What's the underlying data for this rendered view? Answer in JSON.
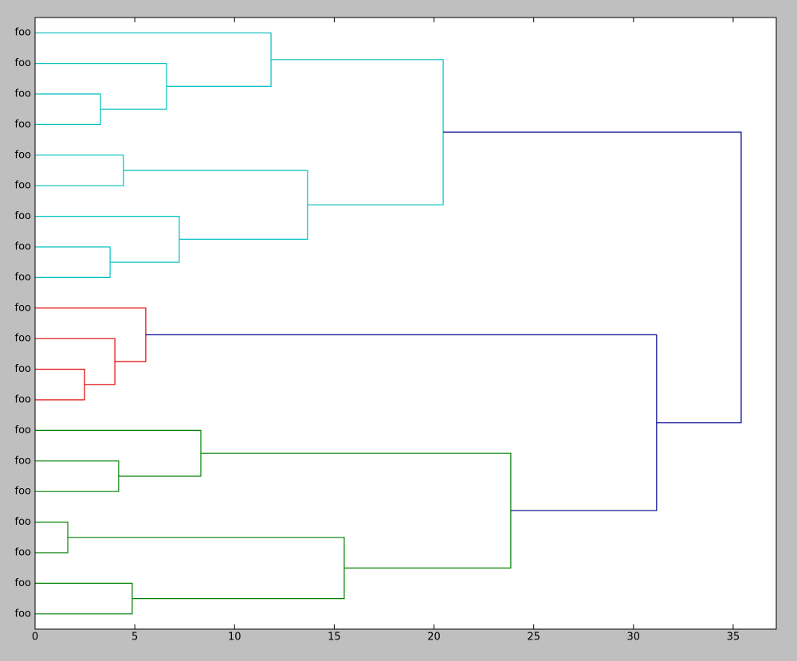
{
  "chart_data": {
    "type": "dendrogram",
    "labels": [
      "foo",
      "foo",
      "foo",
      "foo",
      "foo",
      "foo",
      "foo",
      "foo",
      "foo",
      "foo",
      "foo",
      "foo",
      "foo",
      "foo",
      "foo",
      "foo",
      "foo",
      "foo",
      "foo",
      "foo"
    ],
    "links": [
      {
        "children": [
          2,
          3
        ],
        "height": 3.28,
        "color": "#00bfbf"
      },
      {
        "children": [
          1,
          20
        ],
        "height": 6.59,
        "color": "#00bfbf"
      },
      {
        "children": [
          0,
          21
        ],
        "height": 11.83,
        "color": "#00bfbf"
      },
      {
        "children": [
          4,
          5
        ],
        "height": 4.43,
        "color": "#00bfbf"
      },
      {
        "children": [
          7,
          8
        ],
        "height": 3.76,
        "color": "#00bfbf"
      },
      {
        "children": [
          6,
          24
        ],
        "height": 7.23,
        "color": "#00bfbf"
      },
      {
        "children": [
          23,
          25
        ],
        "height": 13.66,
        "color": "#00bfbf"
      },
      {
        "children": [
          22,
          26
        ],
        "height": 20.46,
        "color": "#00bfbf"
      },
      {
        "children": [
          11,
          12
        ],
        "height": 2.48,
        "color": "#e00000"
      },
      {
        "children": [
          10,
          28
        ],
        "height": 4.0,
        "color": "#e00000"
      },
      {
        "children": [
          9,
          29
        ],
        "height": 5.55,
        "color": "#e00000"
      },
      {
        "children": [
          14,
          15
        ],
        "height": 4.19,
        "color": "#008000"
      },
      {
        "children": [
          13,
          31
        ],
        "height": 8.31,
        "color": "#008000"
      },
      {
        "children": [
          16,
          17
        ],
        "height": 1.64,
        "color": "#008000"
      },
      {
        "children": [
          18,
          19
        ],
        "height": 4.87,
        "color": "#008000"
      },
      {
        "children": [
          33,
          34
        ],
        "height": 15.5,
        "color": "#008000"
      },
      {
        "children": [
          32,
          35
        ],
        "height": 23.85,
        "color": "#008000"
      },
      {
        "children": [
          30,
          36
        ],
        "height": 31.16,
        "color": "#00008b"
      },
      {
        "children": [
          27,
          37
        ],
        "height": 35.4,
        "color": "#00008b"
      }
    ],
    "xlim": [
      0,
      37.16
    ],
    "xticks": [
      0,
      5,
      10,
      15,
      20,
      25,
      30,
      35
    ]
  }
}
